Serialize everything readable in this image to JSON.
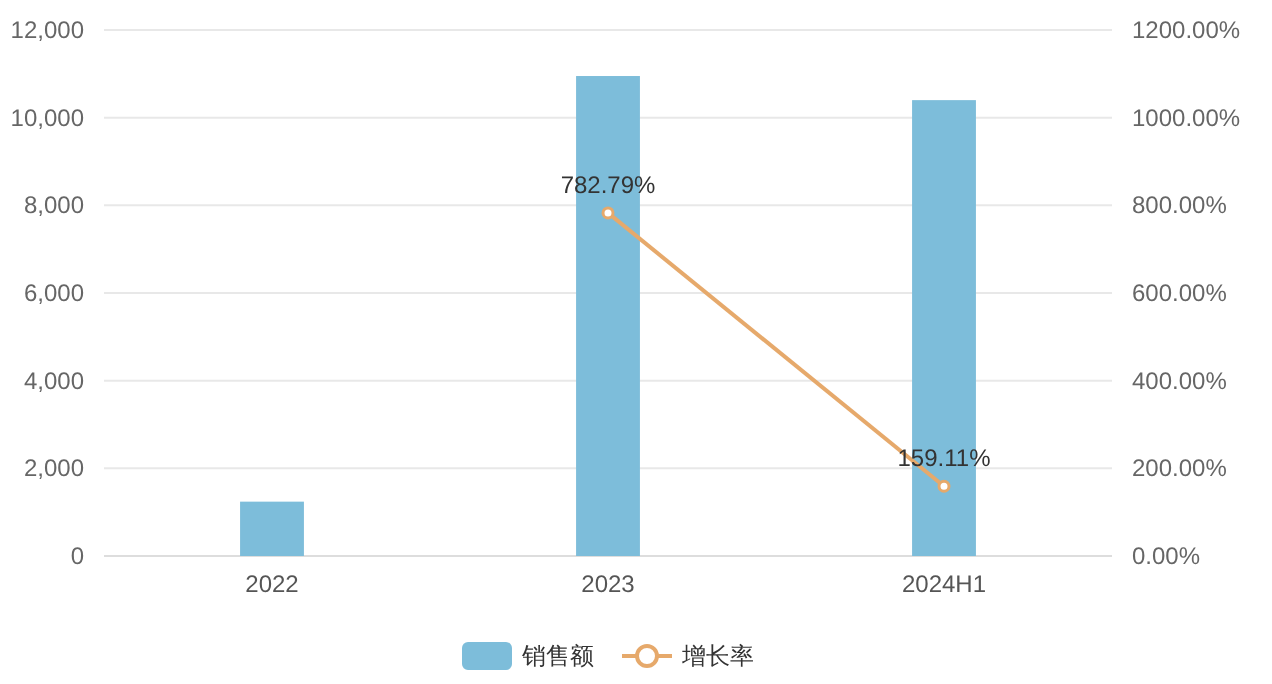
{
  "chart_data": {
    "type": "bar",
    "categories": [
      "2022",
      "2023",
      "2024H1"
    ],
    "series": [
      {
        "name": "销售额",
        "color": "#7dbdda",
        "values": [
          1240,
          10950,
          10400
        ]
      },
      {
        "name": "增长率",
        "type": "line",
        "axis": "y2",
        "color": "#e6a96b",
        "marker": "circle",
        "values": [
          null,
          782.79,
          159.11
        ],
        "value_labels": [
          null,
          "782.79%",
          "159.11%"
        ]
      }
    ],
    "ylim": [
      0,
      12000
    ],
    "yticks": [
      0,
      {
        "value": 2000,
        "label": "2,000"
      },
      {
        "value": 4000,
        "label": "4,000"
      },
      {
        "value": 6000,
        "label": "6,000"
      },
      {
        "value": 8000,
        "label": "8,000"
      },
      {
        "value": 10000,
        "label": "10,000"
      },
      {
        "value": 12000,
        "label": "12,000"
      }
    ],
    "y2lim": [
      0,
      1200
    ],
    "y2ticks": [
      {
        "value": 0,
        "label": "0.00%"
      },
      {
        "value": 200,
        "label": "200.00%"
      },
      {
        "value": 400,
        "label": "400.00%"
      },
      {
        "value": 600,
        "label": "600.00%"
      },
      {
        "value": 800,
        "label": "800.00%"
      },
      {
        "value": 1000,
        "label": "1000.00%"
      },
      {
        "value": 1200,
        "label": "1200.00%"
      }
    ],
    "grid": "y",
    "legend": "bottom"
  }
}
